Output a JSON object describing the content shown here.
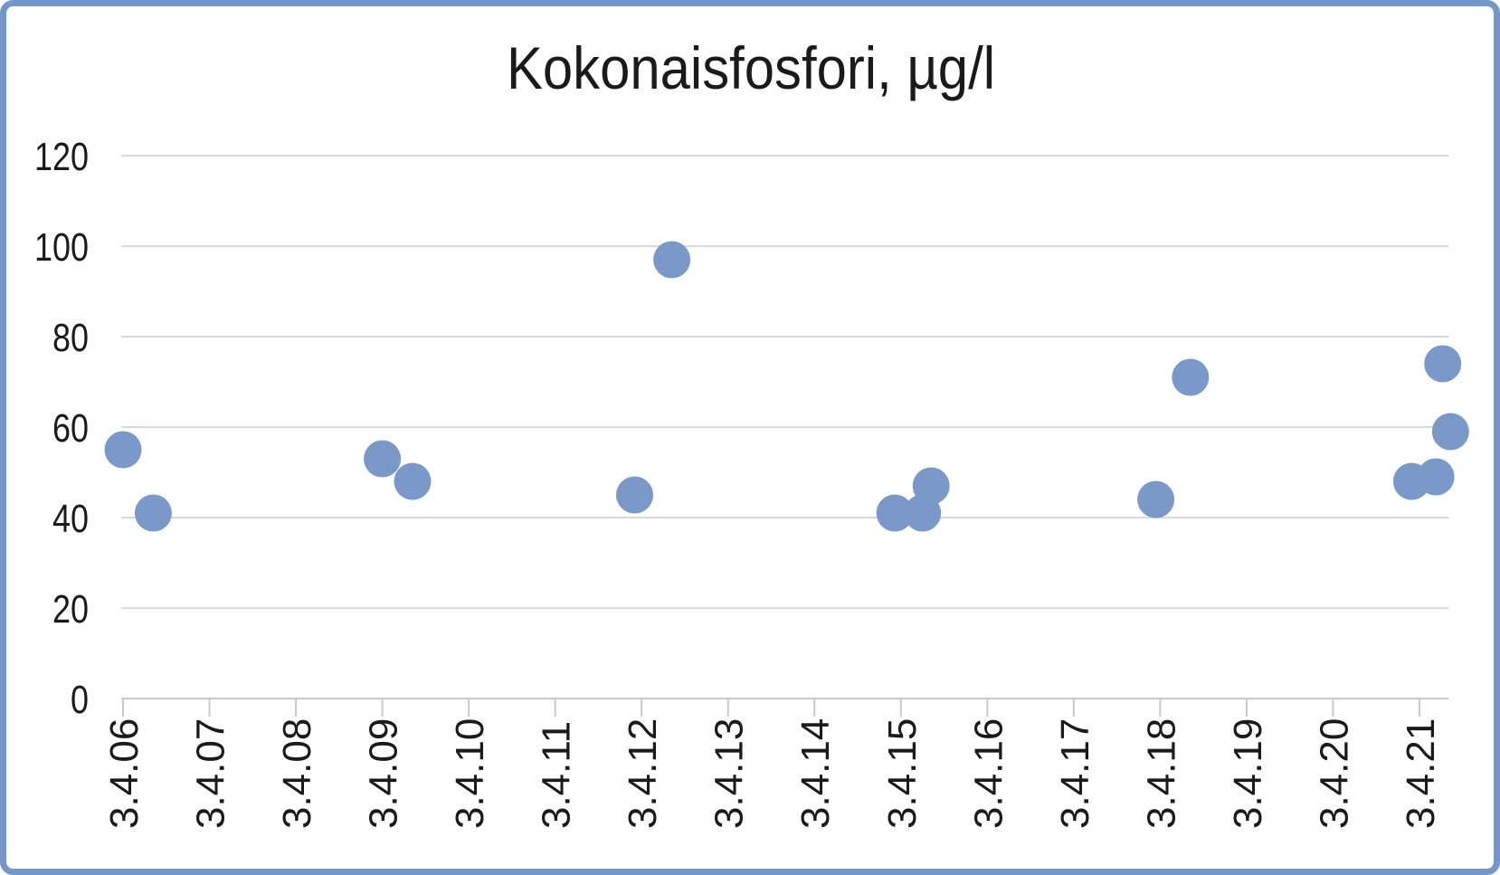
{
  "chart_data": {
    "type": "scatter",
    "title": "Kokonaisfosfori, µg/l",
    "xlabel": "",
    "ylabel": "",
    "legend": false,
    "grid": true,
    "ylim": [
      0,
      120
    ],
    "y_ticks": [
      0,
      20,
      40,
      60,
      80,
      100,
      120
    ],
    "x_axis": {
      "tick_labels": [
        "3.4.06",
        "3.4.07",
        "3.4.08",
        "3.4.09",
        "3.4.10",
        "3.4.11",
        "3.4.12",
        "3.4.13",
        "3.4.14",
        "3.4.15",
        "3.4.16",
        "3.4.17",
        "3.4.18",
        "3.4.19",
        "3.4.20",
        "3.4.21"
      ],
      "first_tick_year": 2006.25,
      "tick_interval_years": 1
    },
    "series": [
      {
        "name": "Kokonaisfosfori",
        "points": [
          {
            "x_year": 2006.25,
            "value": 55
          },
          {
            "x_year": 2006.6,
            "value": 41
          },
          {
            "x_year": 2009.25,
            "value": 53
          },
          {
            "x_year": 2009.6,
            "value": 48
          },
          {
            "x_year": 2012.17,
            "value": 45
          },
          {
            "x_year": 2012.6,
            "value": 97
          },
          {
            "x_year": 2015.18,
            "value": 41
          },
          {
            "x_year": 2015.5,
            "value": 41
          },
          {
            "x_year": 2015.6,
            "value": 47
          },
          {
            "x_year": 2018.2,
            "value": 44
          },
          {
            "x_year": 2018.6,
            "value": 71
          },
          {
            "x_year": 2021.16,
            "value": 48
          },
          {
            "x_year": 2021.44,
            "value": 49
          },
          {
            "x_year": 2021.52,
            "value": 74
          },
          {
            "x_year": 2021.61,
            "value": 59
          }
        ]
      }
    ],
    "colors": {
      "marker": "#7A99C9",
      "frame": "#7497C9",
      "gridline": "#D9D9D9",
      "axis": "#C9C9C9",
      "text": "#1A1A1A",
      "background": "#FFFFFF"
    }
  }
}
